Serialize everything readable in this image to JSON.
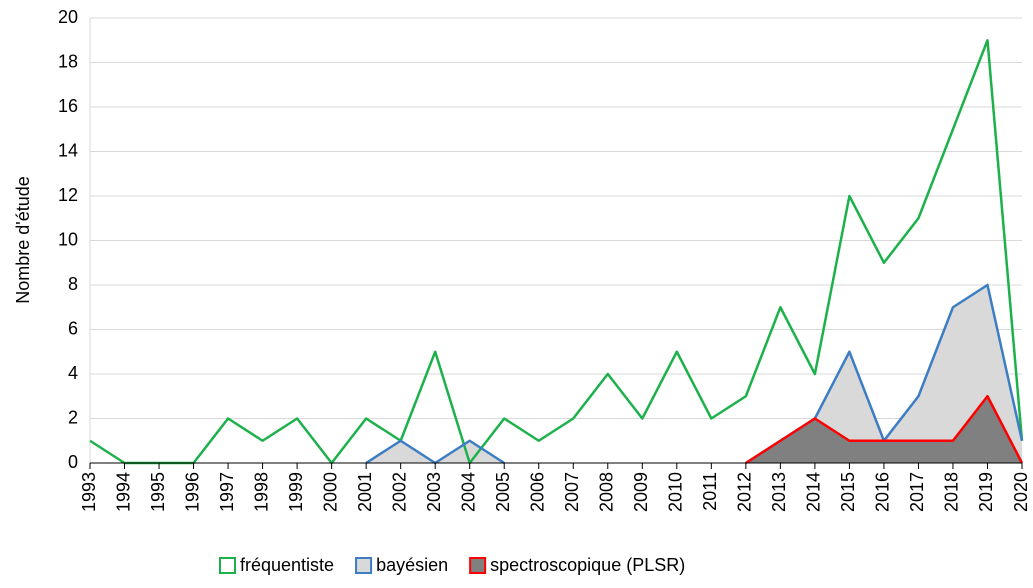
{
  "chart_data": {
    "type": "line",
    "ylabel": "Nombre d'étude",
    "categories": [
      "1993",
      "1994",
      "1995",
      "1996",
      "1997",
      "1998",
      "1999",
      "2000",
      "2001",
      "2002",
      "2003",
      "2004",
      "2005",
      "2006",
      "2007",
      "2008",
      "2009",
      "2010",
      "2011",
      "2012",
      "2013",
      "2014",
      "2015",
      "2016",
      "2017",
      "2018",
      "2019",
      "2020"
    ],
    "series": [
      {
        "name": "fréquentiste",
        "color": "#1db14b",
        "fill": null,
        "values": [
          1,
          0,
          0,
          0,
          2,
          1,
          2,
          0,
          2,
          1,
          5,
          0,
          2,
          1,
          2,
          4,
          2,
          5,
          2,
          3,
          7,
          4,
          12,
          9,
          11,
          15,
          19,
          1
        ]
      },
      {
        "name": "bayésien",
        "color": "#3c7dc4",
        "fill": "#d9d9d9",
        "values": [
          null,
          null,
          null,
          null,
          null,
          null,
          null,
          null,
          0,
          1,
          0,
          1,
          0,
          null,
          null,
          null,
          null,
          null,
          null,
          0,
          1,
          2,
          5,
          1,
          3,
          7,
          8,
          1
        ]
      },
      {
        "name": "spectroscopique (PLSR)",
        "color": "#ff0000",
        "fill": "#808080",
        "values": [
          null,
          null,
          null,
          null,
          null,
          null,
          null,
          null,
          null,
          null,
          null,
          null,
          null,
          null,
          null,
          null,
          null,
          null,
          null,
          0,
          1,
          2,
          1,
          1,
          1,
          1,
          3,
          0
        ]
      }
    ],
    "ylim": [
      0,
      20
    ],
    "yticks": [
      0,
      2,
      4,
      6,
      8,
      10,
      12,
      14,
      16,
      18,
      20
    ],
    "grid": true,
    "legend": "bottom"
  }
}
